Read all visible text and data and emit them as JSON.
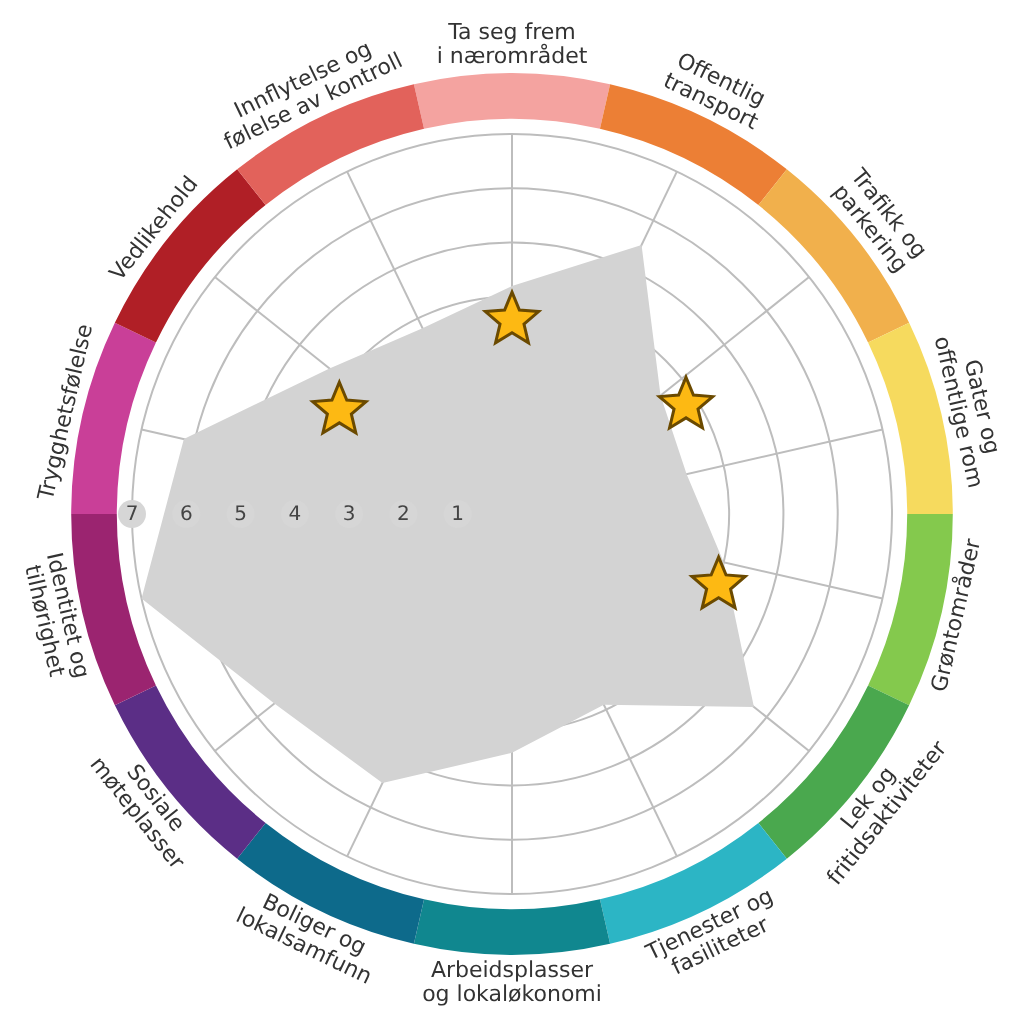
{
  "chart_data": {
    "type": "radar",
    "categories": [
      "Ta seg frem i nærområdet",
      "Offentlig transport",
      "Trafikk og parkering",
      "Gater og offentlige rom",
      "Grøntområder",
      "Lek og fritidsaktiviteter",
      "Tjenester og fasiliteter",
      "Arbeidsplasser og lokaløkonomi",
      "Boliger og lokalsamfunn",
      "Sosiale møteplasser",
      "Identitet og tilhørighet",
      "Trygghetsfølelse",
      "Vedlikehold",
      "Innflytelse og følelse av kontroll"
    ],
    "series": [
      {
        "color": "#d3d3d3",
        "values": [
          4.2,
          5.5,
          3.5,
          3.3,
          4.0,
          5.7,
          3.9,
          4.4,
          5.5,
          5.6,
          7,
          6.2,
          4.3,
          3.8
        ]
      }
    ],
    "ylim": [
      0,
      7
    ],
    "yticks": [
      1,
      2,
      3,
      4,
      5,
      6,
      7
    ],
    "grid": true,
    "marker": "none"
  }
}
